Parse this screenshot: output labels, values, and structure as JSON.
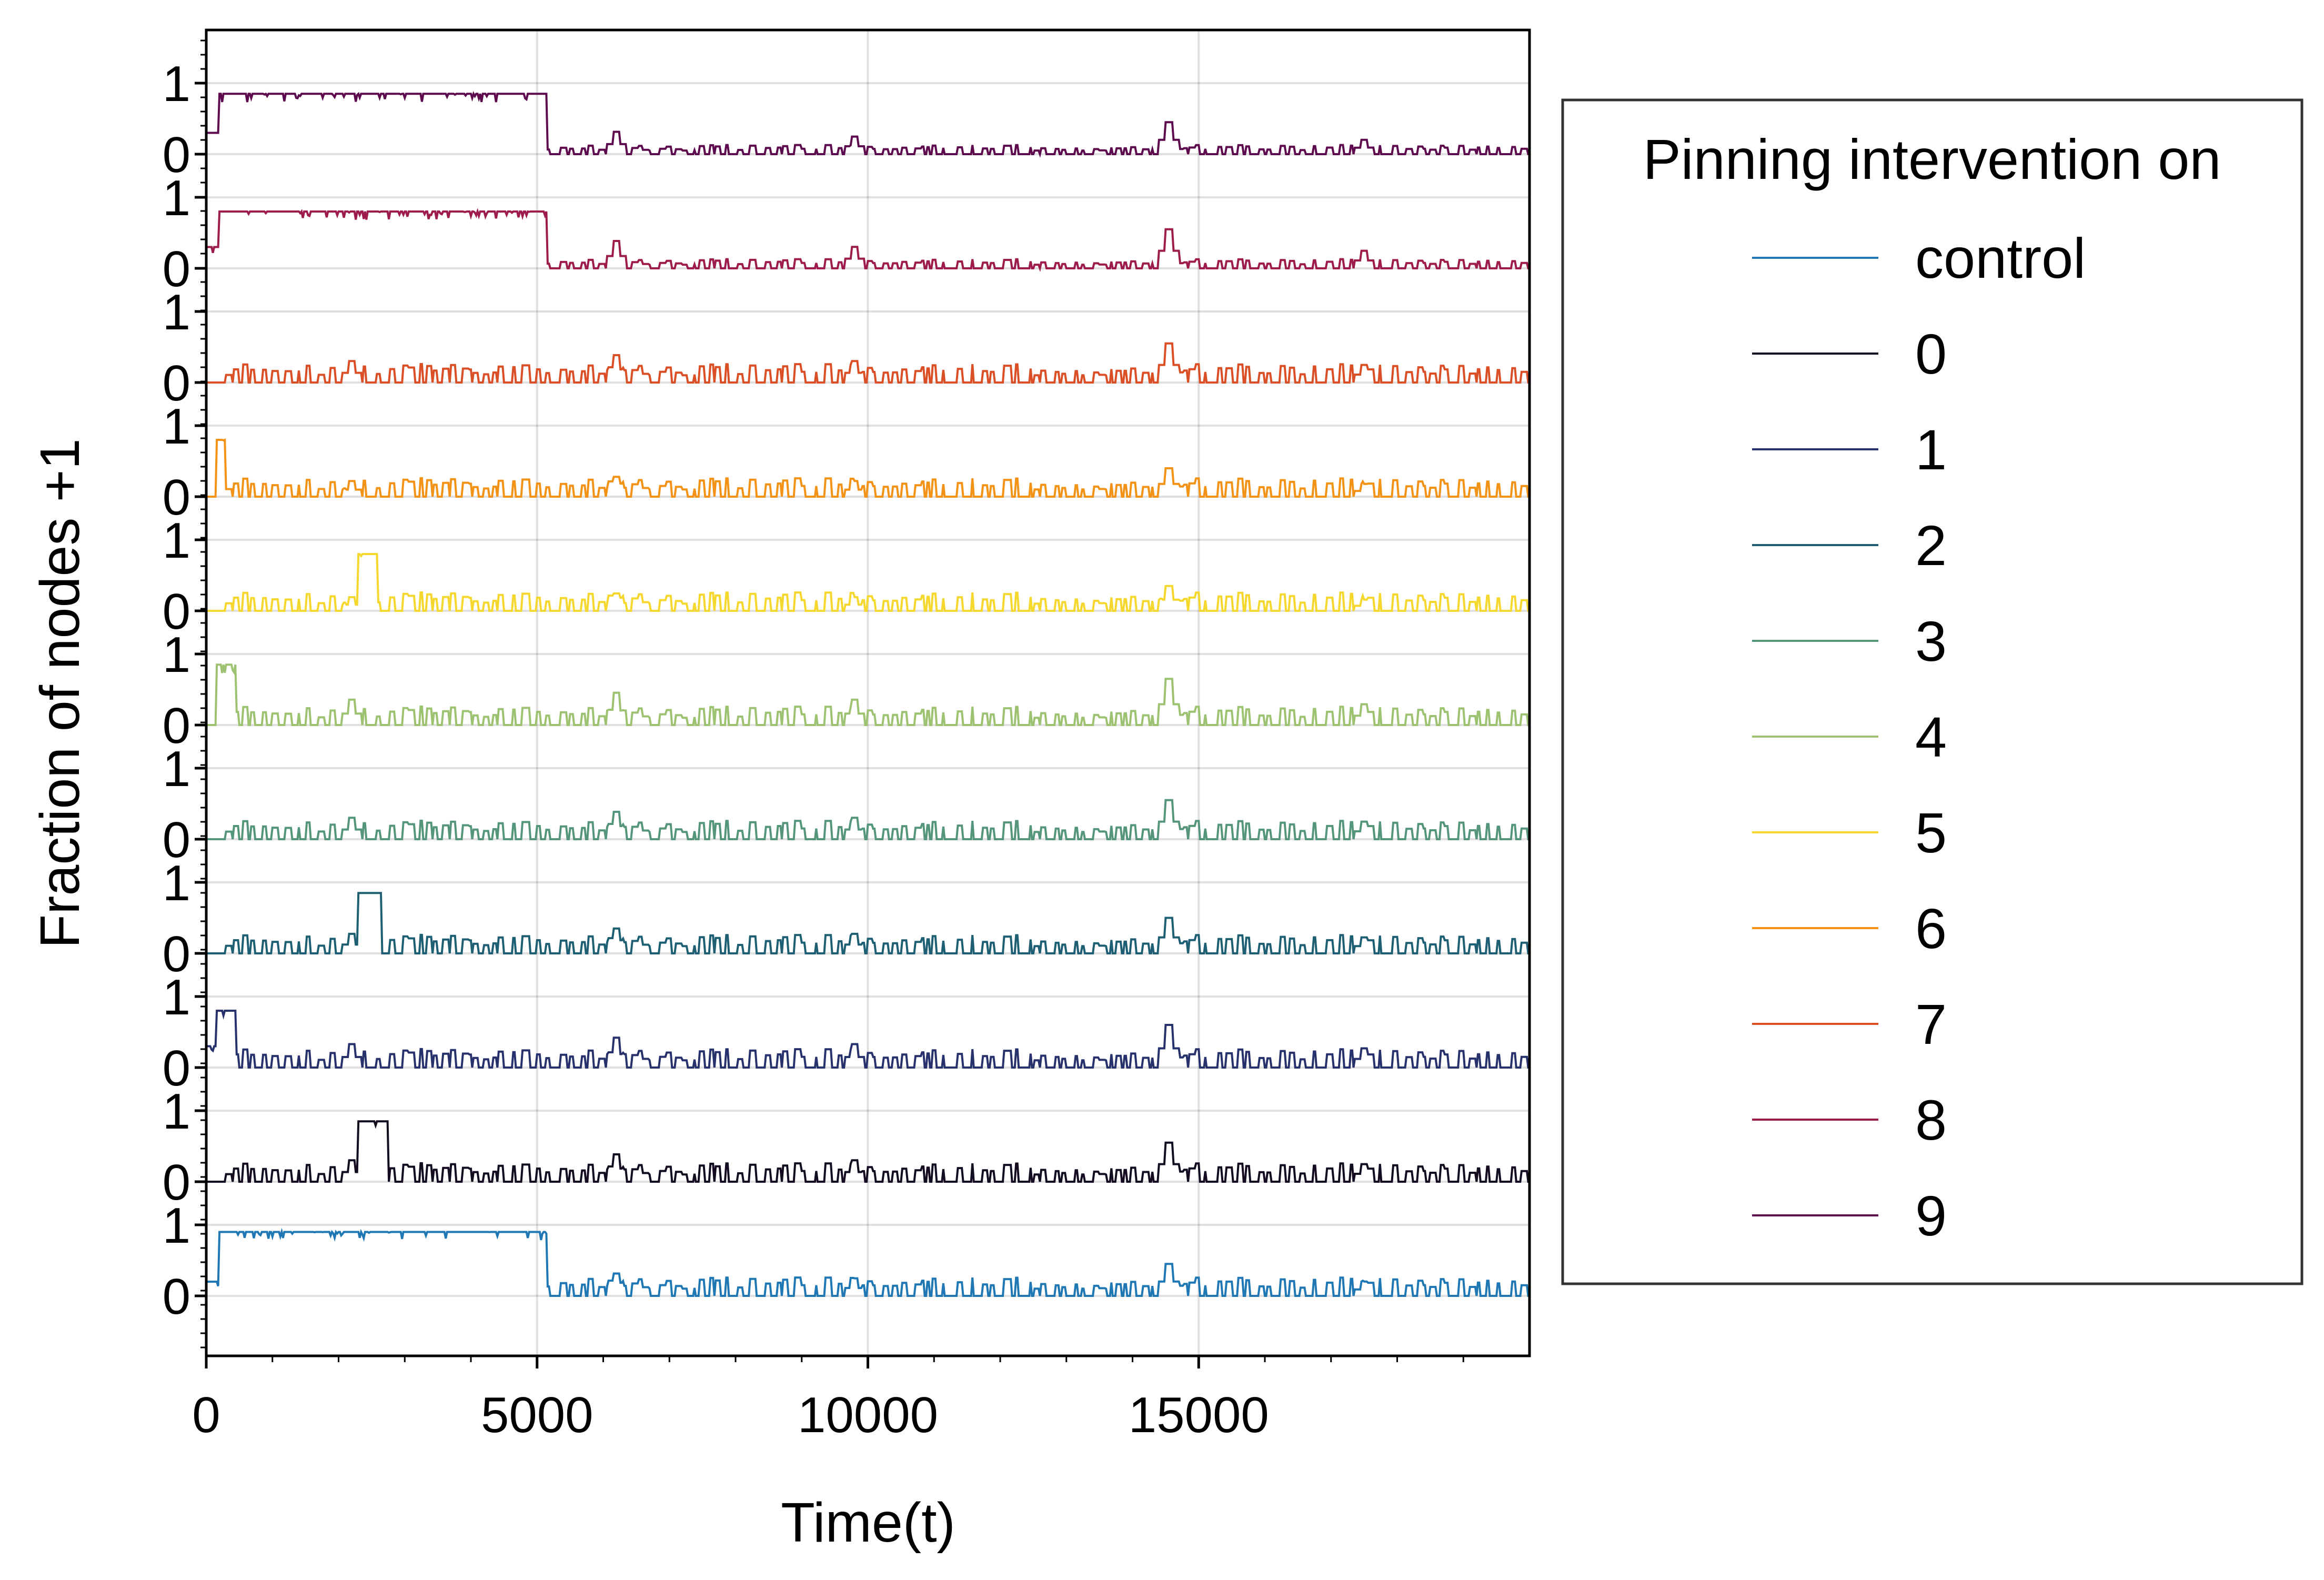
{
  "chart_data": {
    "type": "line",
    "title": "",
    "xlabel": "Time(t)",
    "ylabel": "Fraction of nodes +1",
    "xlim": [
      0,
      20000
    ],
    "x_ticks": [
      "0",
      "5000",
      "10000",
      "15000"
    ],
    "x_tick_values": [
      0,
      5000,
      10000,
      15000
    ],
    "row_y_ticks": [
      "0",
      "1"
    ],
    "grid": true,
    "legend": {
      "title": "Pinning intervention on",
      "placement": "outside-right"
    },
    "rows_bottom_to_top": [
      "control",
      "0",
      "1",
      "2",
      "3",
      "4",
      "5",
      "6",
      "7",
      "8",
      "9"
    ],
    "series": [
      {
        "name": "control",
        "color": "#1f77b4",
        "pulses": [
          [
            0,
            200,
            0.2
          ],
          [
            200,
            5150,
            0.9
          ]
        ],
        "post_base": 0.1,
        "spike": 0.45
      },
      {
        "name": "0",
        "color": "#140d22",
        "pulses": [
          [
            2300,
            2750,
            0.85
          ]
        ],
        "post_base": 0.1,
        "spike": 0.55
      },
      {
        "name": "1",
        "color": "#27316b",
        "pulses": [
          [
            0,
            150,
            0.3
          ],
          [
            150,
            450,
            0.8
          ]
        ],
        "post_base": 0.1,
        "spike": 0.6
      },
      {
        "name": "2",
        "color": "#1e5f73",
        "pulses": [
          [
            2300,
            2650,
            0.85
          ]
        ],
        "post_base": 0.1,
        "spike": 0.5
      },
      {
        "name": "3",
        "color": "#55967a",
        "pulses": [],
        "post_base": 0.1,
        "spike": 0.55
      },
      {
        "name": "4",
        "color": "#9dc272",
        "pulses": [
          [
            150,
            450,
            0.85
          ]
        ],
        "post_base": 0.1,
        "spike": 0.65
      },
      {
        "name": "5",
        "color": "#f5d82f",
        "pulses": [
          [
            2300,
            2600,
            0.8
          ]
        ],
        "post_base": 0.1,
        "spike": 0.35
      },
      {
        "name": "6",
        "color": "#f29318",
        "pulses": [
          [
            150,
            300,
            0.8
          ]
        ],
        "post_base": 0.1,
        "spike": 0.4
      },
      {
        "name": "7",
        "color": "#da4f25",
        "pulses": [],
        "post_base": 0.1,
        "spike": 0.55
      },
      {
        "name": "8",
        "color": "#9e1c4c",
        "pulses": [
          [
            0,
            200,
            0.3
          ],
          [
            200,
            5150,
            0.8
          ]
        ],
        "post_base": 0.05,
        "spike": 0.55
      },
      {
        "name": "9",
        "color": "#5d0b4e",
        "pulses": [
          [
            0,
            200,
            0.3
          ],
          [
            200,
            5150,
            0.85
          ]
        ],
        "post_base": 0.05,
        "spike": 0.45
      }
    ]
  }
}
